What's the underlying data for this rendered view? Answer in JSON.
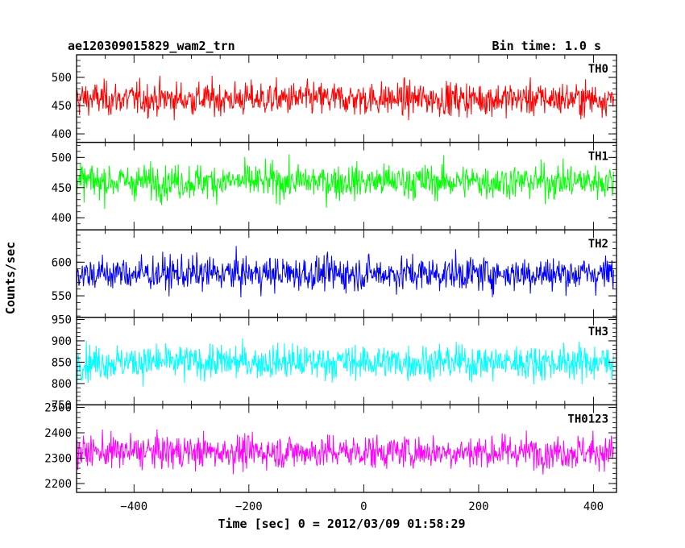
{
  "header": {
    "title": "ae120309015829_wam2_trn",
    "bin_time": "Bin time: 1.0 s"
  },
  "axes": {
    "ylabel": "Counts/sec",
    "xlabel": "Time [sec] 0 = 2012/03/09 01:58:29"
  },
  "chart_data": {
    "type": "line",
    "x_range": [
      -500,
      440
    ],
    "x_ticks": [
      -400,
      -200,
      0,
      200,
      400
    ],
    "x_tick_labels": [
      "−400",
      "−200",
      "0",
      "200",
      "400"
    ],
    "y_label": "Counts/sec",
    "x_label": "Time [sec] 0 = 2012/03/09 01:58:29",
    "panels": [
      {
        "name": "TH0",
        "color": "#ff0000",
        "ylim": [
          385,
          540
        ],
        "yticks": [
          400,
          450,
          500
        ],
        "mean": 462,
        "spread": 28,
        "data_x_range": [
          -505,
          435
        ]
      },
      {
        "name": "TH1",
        "color": "#00ff00",
        "ylim": [
          380,
          525
        ],
        "yticks": [
          400,
          450,
          500
        ],
        "mean": 460,
        "spread": 27,
        "data_x_range": [
          -505,
          435
        ]
      },
      {
        "name": "TH2",
        "color": "#0000ff",
        "ylim": [
          518,
          648
        ],
        "yticks": [
          550,
          600,
          650
        ],
        "mean": 583,
        "spread": 24,
        "data_x_range": [
          -505,
          435
        ]
      },
      {
        "name": "TH3",
        "color": "#00ffff",
        "ylim": [
          750,
          955
        ],
        "yticks": [
          750,
          800,
          850,
          900,
          950
        ],
        "mean": 850,
        "spread": 38,
        "data_x_range": [
          -505,
          435
        ]
      },
      {
        "name": "TH0123",
        "color": "#ff00ff",
        "ylim": [
          2165,
          2510
        ],
        "yticks": [
          2200,
          2300,
          2400,
          2500
        ],
        "mean": 2325,
        "spread": 62,
        "data_x_range": [
          -505,
          435
        ]
      }
    ]
  }
}
